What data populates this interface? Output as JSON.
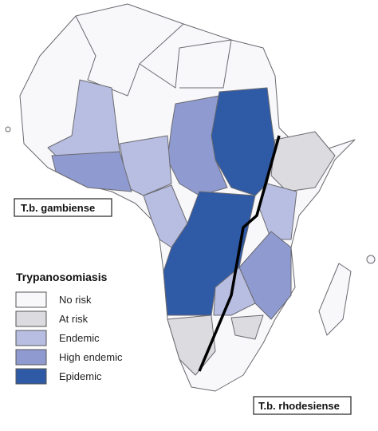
{
  "labels": {
    "gambiense": "T.b. gambiense",
    "rhodesiense": "T.b. rhodesiense"
  },
  "legend": {
    "title": "Trypanosomiasis",
    "items": [
      {
        "label": "No risk",
        "color": "#f8f8fb"
      },
      {
        "label": "At risk",
        "color": "#dcdce0"
      },
      {
        "label": "Endemic",
        "color": "#b8bee2"
      },
      {
        "label": "High endemic",
        "color": "#8f9bd0"
      },
      {
        "label": "Epidemic",
        "color": "#2f5aa6"
      }
    ]
  }
}
